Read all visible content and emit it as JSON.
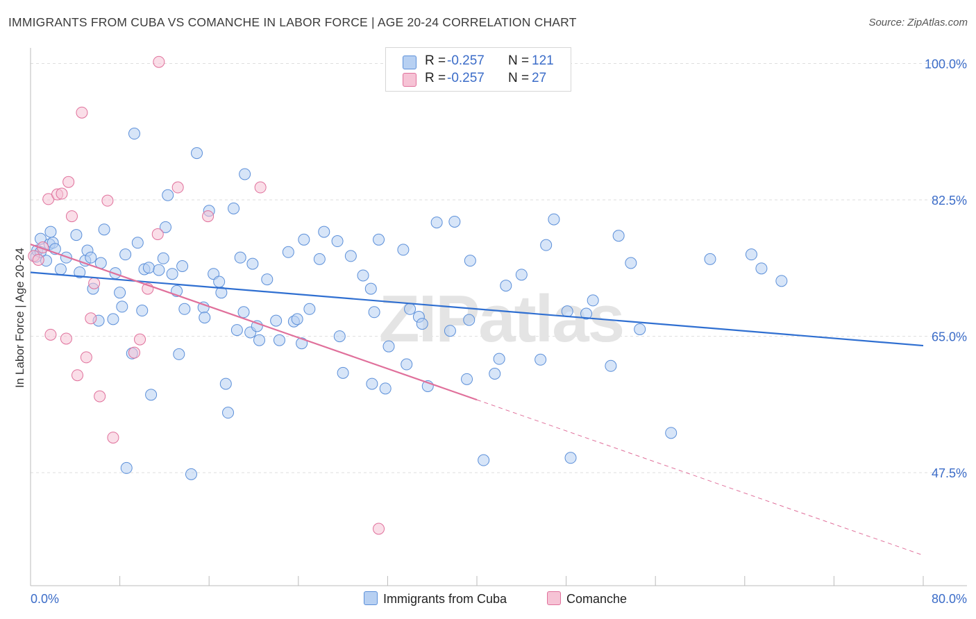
{
  "title": "IMMIGRANTS FROM CUBA VS COMANCHE IN LABOR FORCE | AGE 20-24 CORRELATION CHART",
  "source": "Source: ZipAtlas.com",
  "watermark": "ZIPatlas",
  "colors": {
    "series1": "#5b8fd9",
    "series1_fill": "#b7d0f2",
    "series2": "#e0709b",
    "series2_fill": "#f6c3d5",
    "axis_label": "#3b6cc8",
    "grid": "#dddddd"
  },
  "legend": {
    "rows": [
      {
        "r_label": "R =",
        "r_value": "-0.257",
        "n_label": "N =",
        "n_value": "121"
      },
      {
        "r_label": "R =",
        "r_value": "-0.257",
        "n_label": "N =",
        "n_value": "27"
      }
    ]
  },
  "bottom_legend": {
    "series1": "Immigrants from Cuba",
    "series2": "Comanche"
  },
  "chart_data": {
    "type": "scatter",
    "title": "IMMIGRANTS FROM CUBA VS COMANCHE IN LABOR FORCE | AGE 20-24 CORRELATION CHART",
    "xlabel": "",
    "ylabel": "In Labor Force | Age 20-24",
    "xlim": [
      0,
      80
    ],
    "ylim": [
      33,
      102
    ],
    "x_tick_labels": [
      "0.0%",
      "80.0%"
    ],
    "y_ticks": [
      47.5,
      65.0,
      82.5,
      100.0
    ],
    "y_tick_labels": [
      "47.5%",
      "65.0%",
      "82.5%",
      "100.0%"
    ],
    "grid": true,
    "legend_position": "top-center",
    "series": [
      {
        "name": "Immigrants from Cuba",
        "color": "#5b8fd9",
        "trend": {
          "x0": 0,
          "y0": 73.2,
          "x1": 80,
          "y1": 63.8,
          "dashed_from": null
        },
        "points": [
          [
            0.5,
            75.2
          ],
          [
            0.6,
            76.0
          ],
          [
            0.9,
            77.5
          ],
          [
            0.9,
            75.8
          ],
          [
            1.4,
            74.7
          ],
          [
            1.7,
            76.8
          ],
          [
            1.8,
            78.4
          ],
          [
            2.0,
            77.0
          ],
          [
            2.2,
            76.2
          ],
          [
            2.7,
            73.6
          ],
          [
            3.2,
            75.1
          ],
          [
            4.1,
            78.0
          ],
          [
            4.4,
            73.2
          ],
          [
            4.9,
            74.7
          ],
          [
            5.1,
            76.0
          ],
          [
            5.4,
            75.1
          ],
          [
            5.6,
            71.1
          ],
          [
            6.1,
            67.0
          ],
          [
            6.3,
            74.4
          ],
          [
            6.6,
            78.7
          ],
          [
            7.4,
            67.2
          ],
          [
            7.6,
            73.1
          ],
          [
            8.0,
            70.6
          ],
          [
            8.2,
            68.8
          ],
          [
            8.5,
            75.5
          ],
          [
            8.6,
            48.1
          ],
          [
            9.1,
            62.8
          ],
          [
            9.3,
            91.0
          ],
          [
            9.6,
            77.0
          ],
          [
            10.0,
            68.3
          ],
          [
            10.2,
            73.6
          ],
          [
            10.6,
            73.8
          ],
          [
            10.8,
            57.5
          ],
          [
            11.5,
            73.5
          ],
          [
            11.9,
            75.0
          ],
          [
            12.1,
            79.0
          ],
          [
            12.3,
            83.1
          ],
          [
            12.7,
            73.0
          ],
          [
            13.1,
            70.8
          ],
          [
            13.3,
            62.7
          ],
          [
            13.6,
            74.0
          ],
          [
            13.8,
            68.5
          ],
          [
            14.4,
            47.3
          ],
          [
            14.9,
            88.5
          ],
          [
            15.5,
            68.7
          ],
          [
            15.6,
            67.4
          ],
          [
            16.0,
            81.1
          ],
          [
            16.4,
            73.0
          ],
          [
            16.9,
            72.0
          ],
          [
            17.1,
            70.6
          ],
          [
            17.5,
            58.9
          ],
          [
            17.7,
            55.2
          ],
          [
            18.2,
            81.4
          ],
          [
            18.5,
            65.8
          ],
          [
            18.8,
            75.1
          ],
          [
            19.1,
            68.1
          ],
          [
            19.2,
            85.8
          ],
          [
            19.7,
            65.5
          ],
          [
            19.9,
            74.3
          ],
          [
            20.3,
            66.3
          ],
          [
            20.5,
            64.5
          ],
          [
            21.2,
            72.3
          ],
          [
            22.0,
            67.0
          ],
          [
            22.3,
            64.5
          ],
          [
            23.1,
            75.8
          ],
          [
            23.6,
            66.9
          ],
          [
            23.9,
            67.2
          ],
          [
            24.3,
            64.1
          ],
          [
            24.5,
            77.4
          ],
          [
            25.0,
            68.5
          ],
          [
            25.9,
            74.9
          ],
          [
            26.3,
            78.4
          ],
          [
            27.5,
            77.2
          ],
          [
            27.7,
            65.0
          ],
          [
            28.0,
            60.3
          ],
          [
            28.7,
            75.3
          ],
          [
            29.8,
            72.8
          ],
          [
            30.5,
            71.1
          ],
          [
            30.6,
            58.9
          ],
          [
            30.8,
            68.1
          ],
          [
            31.2,
            77.4
          ],
          [
            31.8,
            58.3
          ],
          [
            32.1,
            63.7
          ],
          [
            33.4,
            76.1
          ],
          [
            33.7,
            61.4
          ],
          [
            34.0,
            68.5
          ],
          [
            34.8,
            67.5
          ],
          [
            35.1,
            66.6
          ],
          [
            35.6,
            58.6
          ],
          [
            36.4,
            79.6
          ],
          [
            37.6,
            65.7
          ],
          [
            38.0,
            79.7
          ],
          [
            39.1,
            59.5
          ],
          [
            39.3,
            67.1
          ],
          [
            39.4,
            74.7
          ],
          [
            40.6,
            49.1
          ],
          [
            41.6,
            60.2
          ],
          [
            42.0,
            62.1
          ],
          [
            42.6,
            71.5
          ],
          [
            44.0,
            72.9
          ],
          [
            45.7,
            62.0
          ],
          [
            46.2,
            76.7
          ],
          [
            46.9,
            80.0
          ],
          [
            48.1,
            68.2
          ],
          [
            48.4,
            49.4
          ],
          [
            49.8,
            67.9
          ],
          [
            50.4,
            69.6
          ],
          [
            52.0,
            61.2
          ],
          [
            52.7,
            77.9
          ],
          [
            53.8,
            74.4
          ],
          [
            54.6,
            65.9
          ],
          [
            57.4,
            52.6
          ],
          [
            60.9,
            74.9
          ],
          [
            64.6,
            75.5
          ],
          [
            65.5,
            73.7
          ],
          [
            67.3,
            72.1
          ]
        ]
      },
      {
        "name": "Comanche",
        "color": "#e0709b",
        "trend": {
          "x0": 0,
          "y0": 76.8,
          "x1": 80,
          "y1": 36.9,
          "dashed_from": 40
        },
        "points": [
          [
            0.3,
            75.3
          ],
          [
            0.7,
            74.8
          ],
          [
            1.1,
            76.4
          ],
          [
            1.6,
            82.6
          ],
          [
            1.8,
            65.2
          ],
          [
            2.4,
            83.2
          ],
          [
            2.8,
            83.3
          ],
          [
            3.2,
            64.7
          ],
          [
            3.4,
            84.8
          ],
          [
            3.7,
            80.4
          ],
          [
            4.2,
            60.0
          ],
          [
            4.6,
            93.7
          ],
          [
            5.0,
            62.3
          ],
          [
            5.4,
            67.3
          ],
          [
            5.7,
            71.8
          ],
          [
            6.2,
            57.3
          ],
          [
            6.9,
            82.4
          ],
          [
            7.4,
            52.0
          ],
          [
            9.3,
            62.9
          ],
          [
            9.8,
            64.6
          ],
          [
            10.5,
            71.1
          ],
          [
            11.4,
            78.1
          ],
          [
            11.5,
            100.2
          ],
          [
            13.2,
            84.1
          ],
          [
            15.9,
            80.4
          ],
          [
            20.6,
            84.1
          ],
          [
            31.2,
            40.3
          ]
        ]
      }
    ]
  }
}
